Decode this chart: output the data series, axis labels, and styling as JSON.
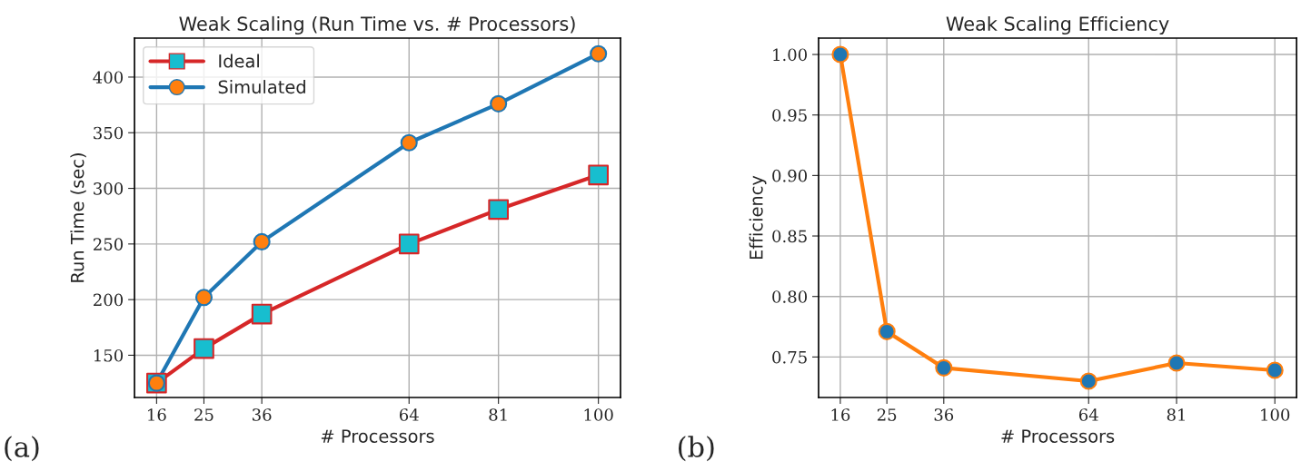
{
  "chart_data": [
    {
      "type": "line",
      "title": "Weak Scaling (Run Time vs. # Processors)",
      "xlabel": "# Processors",
      "ylabel": "Run Time (sec)",
      "x": [
        16,
        25,
        36,
        64,
        81,
        100
      ],
      "xlim": [
        11.8,
        104.2
      ],
      "xticks": [
        16,
        25,
        36,
        64,
        81,
        100
      ],
      "ylim": [
        112,
        435
      ],
      "yticks": [
        150,
        200,
        250,
        300,
        350,
        400
      ],
      "grid": true,
      "legend": "top left",
      "annotations": [
        "(a)"
      ],
      "series": [
        {
          "name": "Ideal",
          "color": "#d62728",
          "colors": [
            "#17becf",
            "#17becf",
            "#17becf",
            "#17becf",
            "#17becf",
            "#17becf"
          ],
          "marker": "square",
          "values": [
            125,
            156,
            187,
            250,
            281,
            312
          ]
        },
        {
          "name": "Simulated",
          "color": "#1f77b4",
          "colors": [
            "#ff7f0e",
            "#ff7f0e",
            "#ff7f0e",
            "#ff7f0e",
            "#ff7f0e",
            "#ff7f0e"
          ],
          "marker": "circle",
          "values": [
            125,
            202,
            252,
            341,
            376,
            421
          ]
        }
      ]
    },
    {
      "type": "line",
      "title": "Weak Scaling Efficiency",
      "xlabel": "# Processors",
      "ylabel": "Efficiency",
      "x": [
        16,
        25,
        36,
        64,
        81,
        100
      ],
      "xlim": [
        11.8,
        104.2
      ],
      "xticks": [
        16,
        25,
        36,
        64,
        81,
        100
      ],
      "ylim": [
        0.7165,
        1.0135
      ],
      "yticks": [
        {
          "value": 0.75,
          "label": "0.75"
        },
        {
          "value": 0.8,
          "label": "0.80"
        },
        {
          "value": 0.85,
          "label": "0.85"
        },
        {
          "value": 0.9,
          "label": "0.90"
        },
        {
          "value": 0.95,
          "label": "0.95"
        },
        {
          "value": 1.0,
          "label": "1.00"
        }
      ],
      "grid": true,
      "annotations": [
        "(b)"
      ],
      "series": [
        {
          "color": "#ff7f0e",
          "colors": [
            "#1f77b4",
            "#1f77b4",
            "#1f77b4",
            "#1f77b4",
            "#1f77b4",
            "#1f77b4"
          ],
          "marker": "circle",
          "values": [
            1.0,
            0.771,
            0.741,
            0.73,
            0.745,
            0.739
          ]
        }
      ]
    }
  ]
}
